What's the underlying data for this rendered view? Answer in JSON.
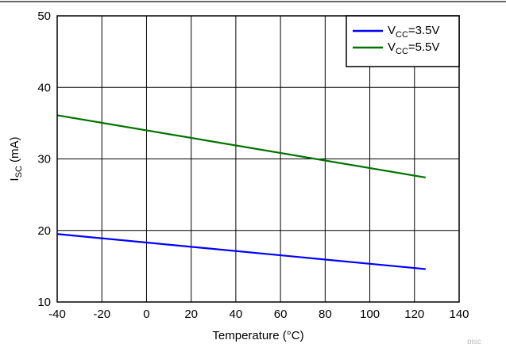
{
  "page": {
    "top_rule_color": "#333333"
  },
  "chart_data": {
    "type": "line",
    "xlabel": "Temperature (°C)",
    "ylabel": {
      "base": "I",
      "sub": "SC",
      "rest": " (mA)"
    },
    "xlim": [
      -40,
      140
    ],
    "ylim": [
      10,
      50
    ],
    "xticks": [
      "-40",
      "-20",
      "0",
      "20",
      "40",
      "60",
      "80",
      "100",
      "120",
      "140"
    ],
    "yticks": [
      "10",
      "20",
      "30",
      "40",
      "50"
    ],
    "grid": true,
    "legend_position": "top-right",
    "series": [
      {
        "label": {
          "base": "V",
          "sub": "CC",
          "rest": "=3.5V"
        },
        "color": "#0000ff",
        "x": [
          -40,
          125
        ],
        "y": [
          19.5,
          14.6
        ]
      },
      {
        "label": {
          "base": "V",
          "sub": "CC",
          "rest": "=5.5V"
        },
        "color": "#007300",
        "x": [
          -40,
          125
        ],
        "y": [
          36.1,
          27.4
        ]
      }
    ],
    "watermark": "pisc"
  }
}
